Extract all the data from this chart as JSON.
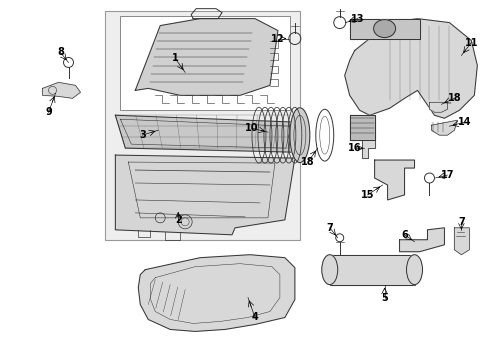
{
  "background_color": "#ffffff",
  "line_color": "#333333",
  "text_color": "#000000",
  "fig_width": 4.89,
  "fig_height": 3.6,
  "dpi": 100
}
